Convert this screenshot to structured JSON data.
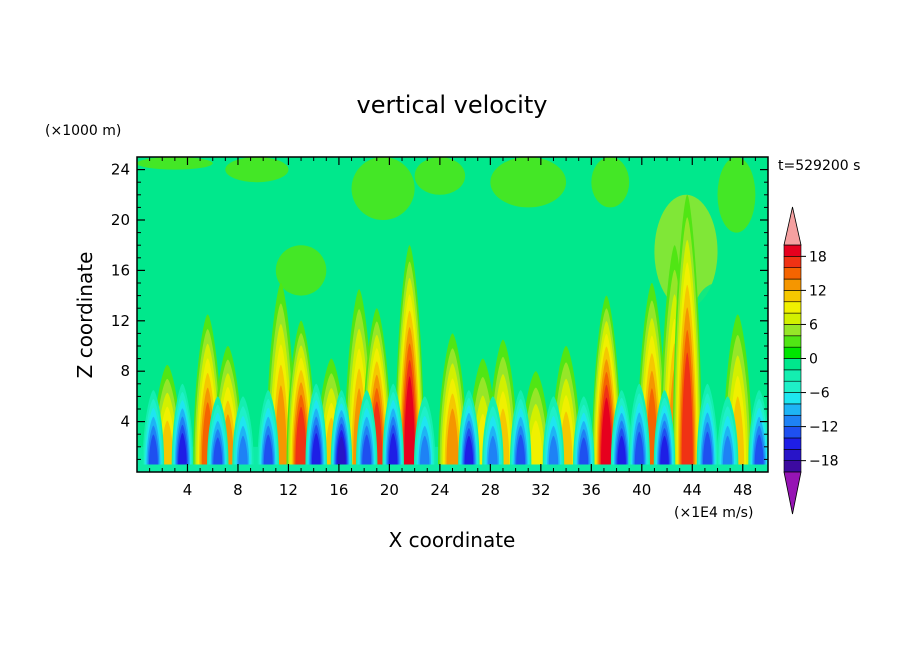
{
  "chart_data": {
    "type": "heatmap",
    "title": "vertical velocity",
    "xlabel": "X coordinate",
    "ylabel": "Z coordinate",
    "y_unit_label": "(×1000 m)",
    "value_unit_label": "(×1E4 m/s)",
    "time_label": "t=529200 s",
    "xlim": [
      0,
      50
    ],
    "ylim": [
      0,
      25
    ],
    "x_ticks": [
      4,
      8,
      12,
      16,
      20,
      24,
      28,
      32,
      36,
      40,
      44,
      48
    ],
    "y_ticks": [
      4,
      8,
      12,
      16,
      20,
      24
    ],
    "colorbar": {
      "levels": [
        -20,
        -18,
        -16,
        -14,
        -12,
        -10,
        -8,
        -6,
        -4,
        -2,
        0,
        2,
        4,
        6,
        8,
        10,
        12,
        14,
        16,
        18,
        20
      ],
      "tick_values": [
        18,
        12,
        6,
        0,
        -6,
        -12,
        -18
      ],
      "colors": [
        "#3c0aa0",
        "#2814c8",
        "#1e1ee6",
        "#1e50f0",
        "#1e82f5",
        "#1eb4f5",
        "#1ee6f0",
        "#1ef0c8",
        "#14eeb0",
        "#00e88c",
        "#00e600",
        "#50e614",
        "#96e628",
        "#d2f000",
        "#f0f000",
        "#f5c800",
        "#f59600",
        "#f56400",
        "#f03214",
        "#e6001e"
      ],
      "under_color": "#9614b4",
      "over_color": "#f5a0a0"
    },
    "updraft_columns": [
      {
        "x": 2.4,
        "top": 8.5,
        "peak": 10
      },
      {
        "x": 5.6,
        "top": 12.5,
        "peak": 14
      },
      {
        "x": 7.2,
        "top": 10.0,
        "peak": 12
      },
      {
        "x": 11.4,
        "top": 15.0,
        "peak": 12
      },
      {
        "x": 13.0,
        "top": 12.0,
        "peak": 16
      },
      {
        "x": 15.4,
        "top": 9.0,
        "peak": 10
      },
      {
        "x": 17.6,
        "top": 14.5,
        "peak": 12
      },
      {
        "x": 19.0,
        "top": 13.0,
        "peak": 16
      },
      {
        "x": 21.6,
        "top": 18.0,
        "peak": 18
      },
      {
        "x": 25.0,
        "top": 11.0,
        "peak": 12
      },
      {
        "x": 27.4,
        "top": 9.0,
        "peak": 8
      },
      {
        "x": 29.0,
        "top": 10.5,
        "peak": 10
      },
      {
        "x": 31.6,
        "top": 8.0,
        "peak": 8
      },
      {
        "x": 34.0,
        "top": 10.0,
        "peak": 10
      },
      {
        "x": 37.2,
        "top": 14.0,
        "peak": 18
      },
      {
        "x": 40.8,
        "top": 15.0,
        "peak": 14
      },
      {
        "x": 42.6,
        "top": 18.0,
        "peak": 12
      },
      {
        "x": 43.6,
        "top": 22.0,
        "peak": 16
      },
      {
        "x": 47.6,
        "top": 12.5,
        "peak": 10
      }
    ],
    "downdraft_columns": [
      {
        "x": 1.3,
        "top": 6.5,
        "peak": -12
      },
      {
        "x": 3.6,
        "top": 7.0,
        "peak": -14
      },
      {
        "x": 6.4,
        "top": 6.0,
        "peak": -12
      },
      {
        "x": 8.4,
        "top": 6.0,
        "peak": -10
      },
      {
        "x": 10.4,
        "top": 6.5,
        "peak": -12
      },
      {
        "x": 14.2,
        "top": 7.0,
        "peak": -14
      },
      {
        "x": 16.2,
        "top": 6.5,
        "peak": -16
      },
      {
        "x": 18.2,
        "top": 6.5,
        "peak": -12
      },
      {
        "x": 20.3,
        "top": 7.0,
        "peak": -14
      },
      {
        "x": 22.8,
        "top": 6.0,
        "peak": -10
      },
      {
        "x": 26.3,
        "top": 6.5,
        "peak": -14
      },
      {
        "x": 28.2,
        "top": 6.0,
        "peak": -10
      },
      {
        "x": 30.4,
        "top": 6.5,
        "peak": -12
      },
      {
        "x": 33.0,
        "top": 6.0,
        "peak": -10
      },
      {
        "x": 35.4,
        "top": 6.0,
        "peak": -12
      },
      {
        "x": 38.4,
        "top": 6.5,
        "peak": -14
      },
      {
        "x": 39.8,
        "top": 7.0,
        "peak": -12
      },
      {
        "x": 41.8,
        "top": 6.5,
        "peak": -14
      },
      {
        "x": 45.2,
        "top": 7.0,
        "peak": -12
      },
      {
        "x": 46.8,
        "top": 6.0,
        "peak": -10
      },
      {
        "x": 49.3,
        "top": 6.5,
        "peak": -12
      }
    ]
  }
}
